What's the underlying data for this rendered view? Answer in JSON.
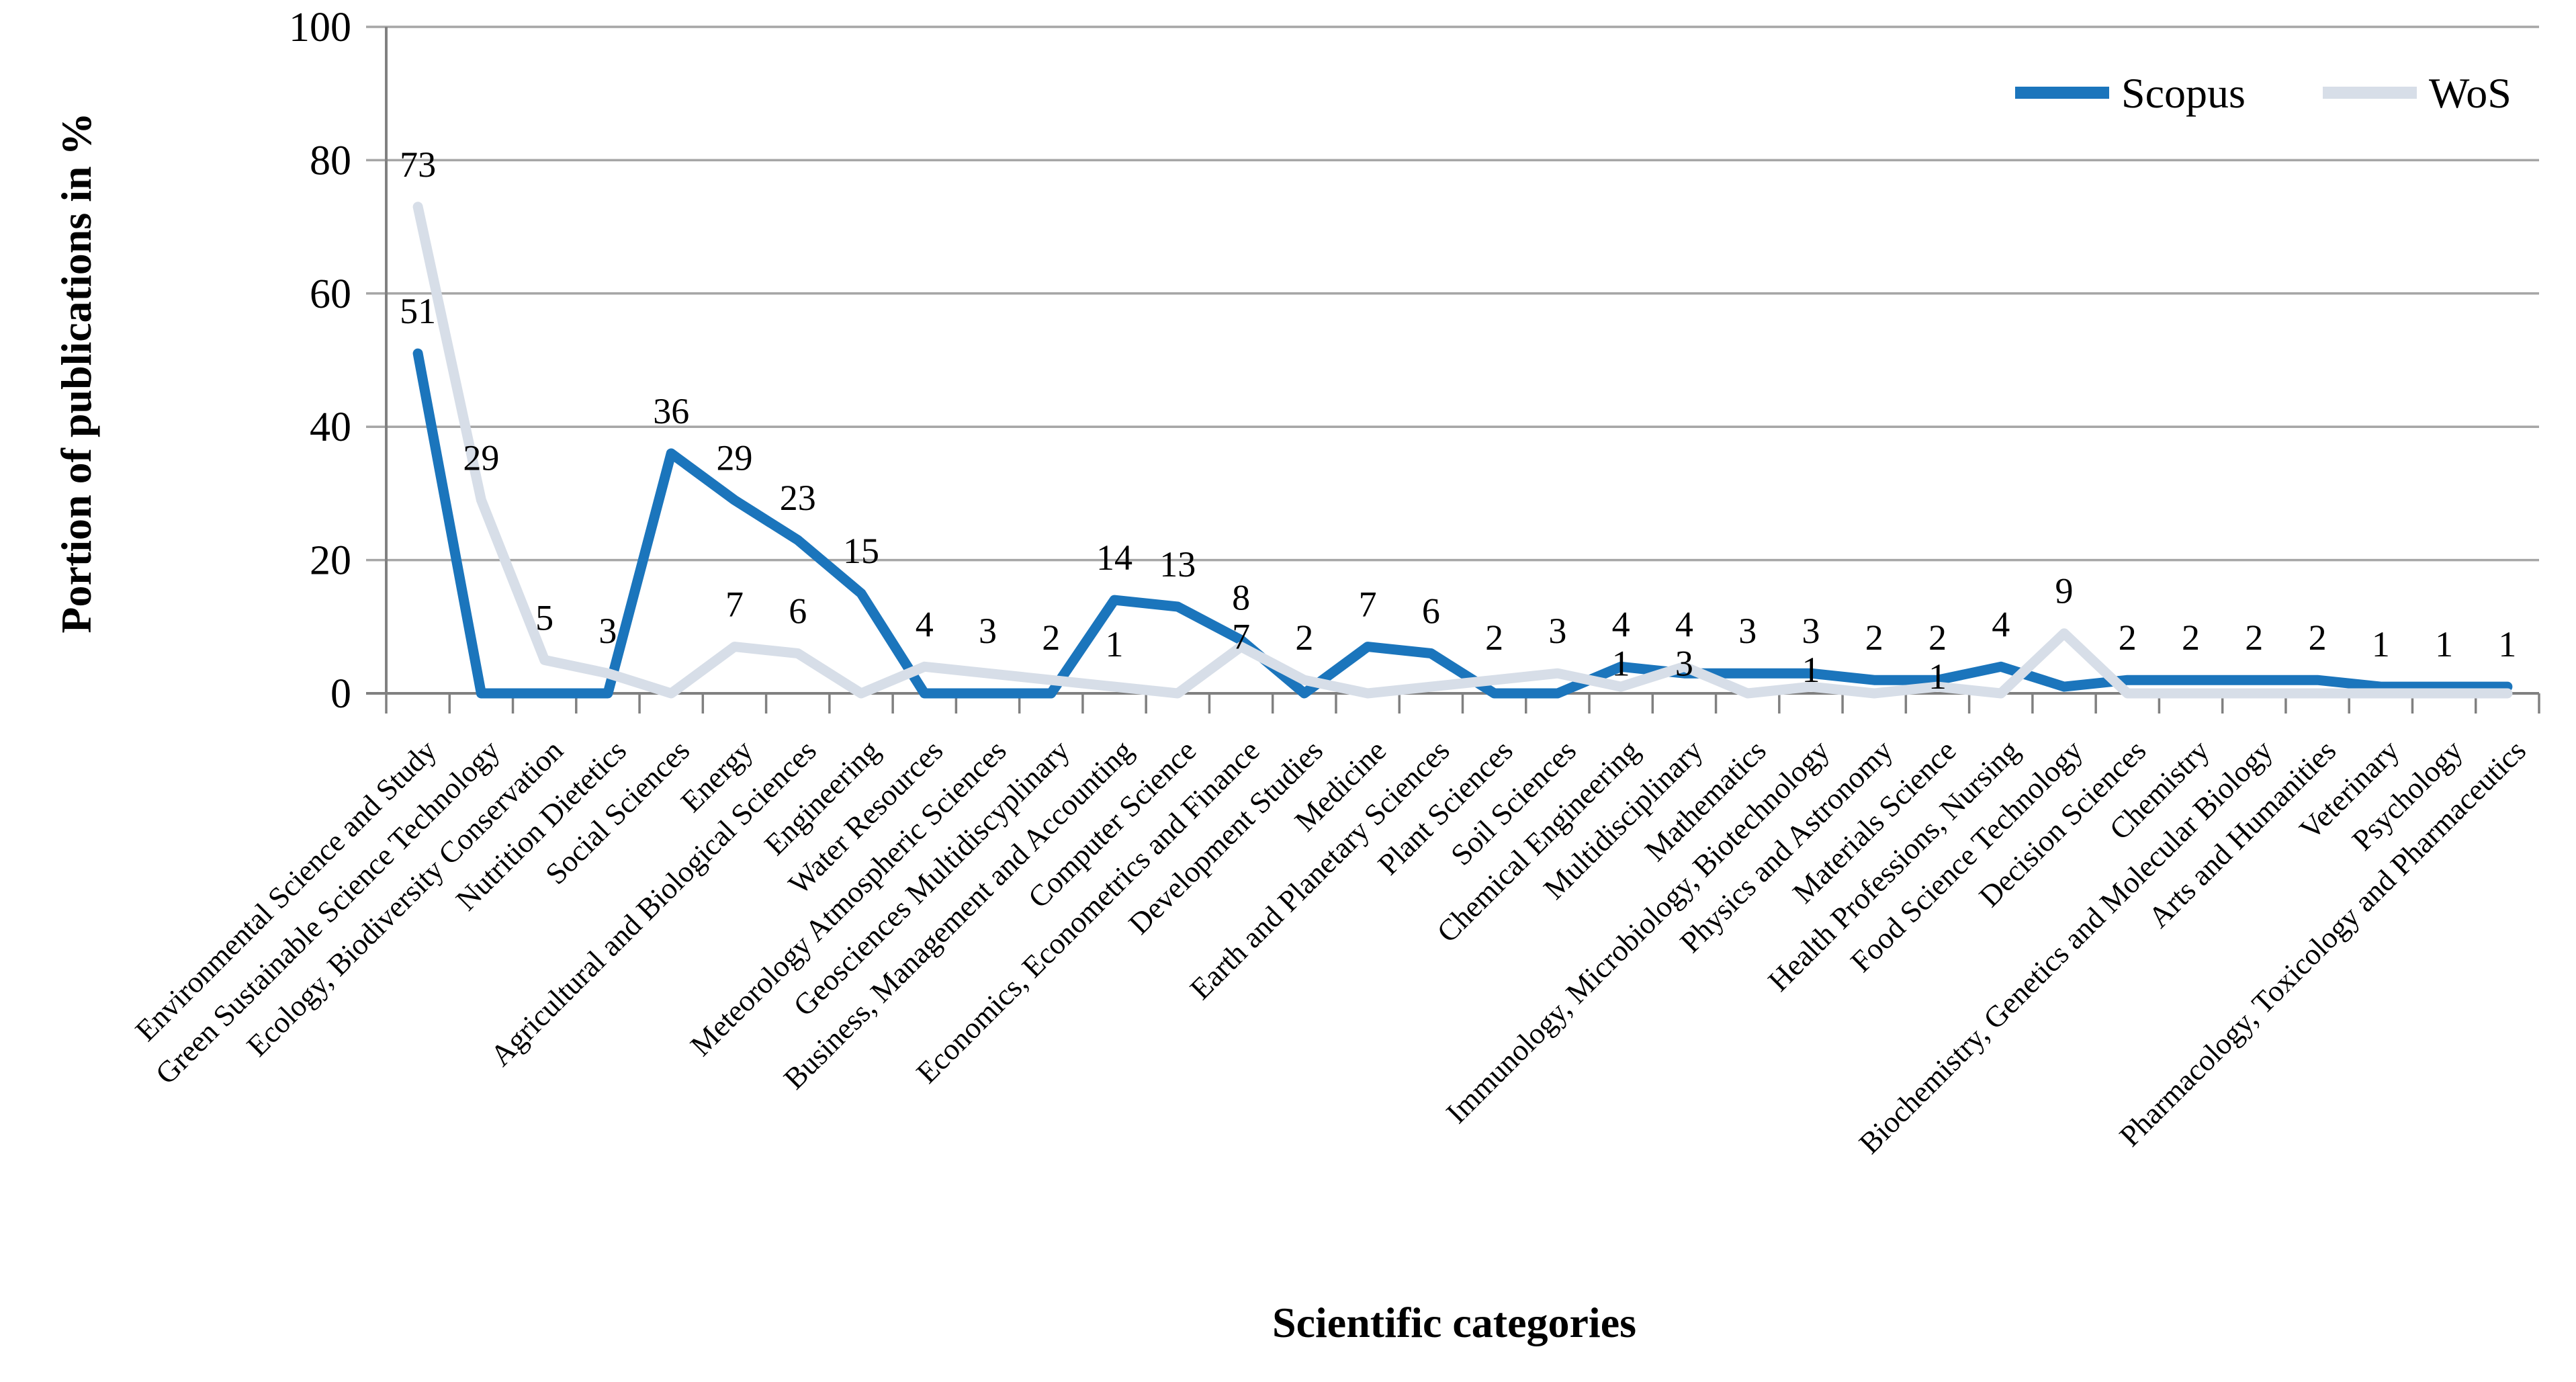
{
  "chart_data": {
    "type": "line",
    "title": "",
    "ylabel": "Portion of publications in %",
    "xlabel": "Scientific categories",
    "ylim": [
      0,
      100
    ],
    "yticks": [
      0,
      20,
      40,
      60,
      80,
      100
    ],
    "grid": true,
    "legend_position": "top-right",
    "categories": [
      "Environmental Science and Study",
      "Green Sustainable Science Technology",
      "Ecology, Biodiversity Conservation",
      "Nutrition Dietetics",
      "Social Sciences",
      "Energy",
      "Agricultural and Biological Sciences",
      "Engineering",
      "Water Resources",
      "Meteorology Atmospheric Sciences",
      "Geosciences Multidiscyplinary",
      "Business, Management and Accounting",
      "Computer Science",
      "Economics, Econometrics and Finance",
      "Development Studies",
      "Medicine",
      "Earth and Planetary Sciences",
      "Plant Sciences",
      "Soil Sciences",
      "Chemical Engineering",
      "Multidisciplinary",
      "Mathematics",
      "Immunology, Microbiology, Biotechnology",
      "Physics and Astronomy",
      "Materials Science",
      "Health Professions, Nursing",
      "Food Science Technology",
      "Decision Sciences",
      "Chemistry",
      "Biochemistry, Genetics and Molecular Biology",
      "Arts and Humanities",
      "Veterinary",
      "Psychology",
      "Pharmacology, Toxicology and Pharmaceutics"
    ],
    "series": [
      {
        "name": "Scopus",
        "color": "#1b75bc",
        "values": [
          51,
          0,
          0,
          0,
          36,
          29,
          23,
          15,
          0,
          0,
          0,
          14,
          13,
          8,
          0,
          7,
          6,
          0,
          0,
          4,
          3,
          3,
          3,
          2,
          2,
          4,
          1,
          2,
          2,
          2,
          2,
          1,
          1,
          1
        ]
      },
      {
        "name": "WoS",
        "color": "#d7dee8",
        "values": [
          73,
          29,
          5,
          3,
          0,
          7,
          6,
          0,
          4,
          3,
          2,
          1,
          0,
          7,
          2,
          0,
          1,
          2,
          3,
          1,
          4,
          0,
          1,
          0,
          1,
          0,
          9,
          0,
          0,
          0,
          0,
          0,
          0,
          0
        ]
      }
    ],
    "point_labels": [
      [
        {
          "text": "73",
          "series": "WoS"
        },
        {
          "text": "51",
          "series": "Scopus"
        }
      ],
      [
        {
          "text": "29",
          "series": "WoS"
        }
      ],
      [
        {
          "text": "5",
          "series": "WoS"
        }
      ],
      [
        {
          "text": "3",
          "series": "WoS"
        }
      ],
      [
        {
          "text": "36",
          "series": "Scopus"
        }
      ],
      [
        {
          "text": "29",
          "series": "Scopus"
        },
        {
          "text": "7",
          "series": "WoS"
        }
      ],
      [
        {
          "text": "23",
          "series": "Scopus"
        },
        {
          "text": "6",
          "series": "WoS"
        }
      ],
      [
        {
          "text": "15",
          "series": "Scopus"
        }
      ],
      [
        {
          "text": "4",
          "series": "WoS"
        }
      ],
      [
        {
          "text": "3",
          "series": "WoS"
        }
      ],
      [
        {
          "text": "2",
          "series": "WoS"
        }
      ],
      [
        {
          "text": "14",
          "series": "Scopus"
        },
        {
          "text": "1",
          "series": "WoS"
        }
      ],
      [
        {
          "text": "13",
          "series": "Scopus"
        }
      ],
      [
        {
          "text": "8",
          "series": "Scopus"
        },
        {
          "text": "7",
          "series": "WoS"
        }
      ],
      [
        {
          "text": "2",
          "series": "WoS"
        }
      ],
      [
        {
          "text": "7",
          "series": "Scopus"
        }
      ],
      [
        {
          "text": "6",
          "series": "Scopus"
        }
      ],
      [
        {
          "text": "2",
          "series": "WoS"
        }
      ],
      [
        {
          "text": "3",
          "series": "WoS"
        }
      ],
      [
        {
          "text": "4",
          "series": "Scopus"
        },
        {
          "text": "1",
          "series": "WoS"
        }
      ],
      [
        {
          "text": "4",
          "series": "WoS"
        },
        {
          "text": "3",
          "series": "Scopus"
        }
      ],
      [
        {
          "text": "3",
          "series": "Scopus"
        }
      ],
      [
        {
          "text": "3",
          "series": "Scopus"
        },
        {
          "text": "1",
          "series": "WoS"
        }
      ],
      [
        {
          "text": "2",
          "series": "Scopus"
        }
      ],
      [
        {
          "text": "2",
          "series": "Scopus"
        },
        {
          "text": "1",
          "series": "WoS"
        }
      ],
      [
        {
          "text": "4",
          "series": "Scopus"
        }
      ],
      [
        {
          "text": "9",
          "series": "WoS"
        }
      ],
      [
        {
          "text": "2",
          "series": "Scopus"
        }
      ],
      [
        {
          "text": "2",
          "series": "Scopus"
        }
      ],
      [
        {
          "text": "2",
          "series": "Scopus"
        }
      ],
      [
        {
          "text": "2",
          "series": "Scopus"
        }
      ],
      [
        {
          "text": "1",
          "series": "Scopus"
        }
      ],
      [
        {
          "text": "1",
          "series": "Scopus"
        }
      ],
      [
        {
          "text": "1",
          "series": "Scopus"
        }
      ]
    ],
    "colors": {
      "gridline": "#a6a6a6",
      "axis": "#808080",
      "text": "#000000",
      "background": "#ffffff"
    }
  }
}
